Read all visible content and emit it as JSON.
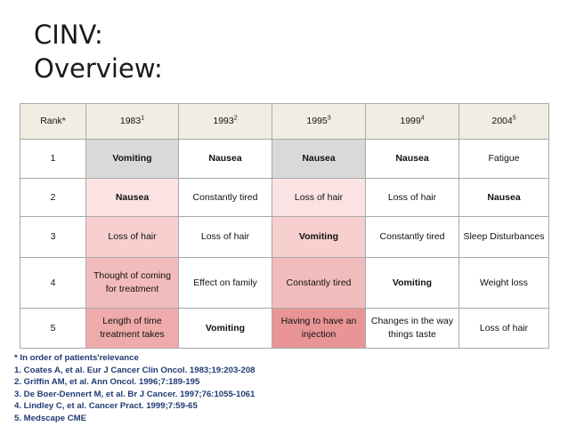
{
  "title": {
    "line1": "CINV:",
    "line2": "Overview:"
  },
  "table": {
    "headers": [
      {
        "label": "Rank*",
        "sup": ""
      },
      {
        "label": "1983",
        "sup": "1"
      },
      {
        "label": "1993",
        "sup": "2"
      },
      {
        "label": "1995",
        "sup": "3"
      },
      {
        "label": "1999",
        "sup": "4"
      },
      {
        "label": "2004",
        "sup": "5"
      }
    ],
    "rows": [
      [
        "1",
        "Vomiting",
        "Nausea",
        "Nausea",
        "Nausea",
        "Fatigue"
      ],
      [
        "2",
        "Nausea",
        "Constantly tired",
        "Loss of hair",
        "Loss of hair",
        "Nausea"
      ],
      [
        "3",
        "Loss of hair",
        "Loss of hair",
        "Vomiting",
        "Constantly tired",
        "Sleep Disturbances"
      ],
      [
        "4",
        "Thought of coming for treatment",
        "Effect on family",
        "Constantly tired",
        "Vomiting",
        "Weight loss"
      ],
      [
        "5",
        "Length of time treatment takes",
        "Vomiting",
        "Having to have an injection",
        "Changes in the way things taste",
        "Loss of hair"
      ]
    ]
  },
  "notes": [
    "*  In order of patients'relevance",
    "1. Coates A, et al. Eur J Cancer Clin Oncol. 1983;19:203-208",
    "2. Griffin AM, et al. Ann Oncol. 1996;7:189-195",
    "3. De Boer-Dennert M, et al. Br J Cancer. 1997;76:1055-1061",
    "4. Lindley C, et al. Cancer Pract. 1999;7:59-65",
    "5. Medscape CME"
  ]
}
